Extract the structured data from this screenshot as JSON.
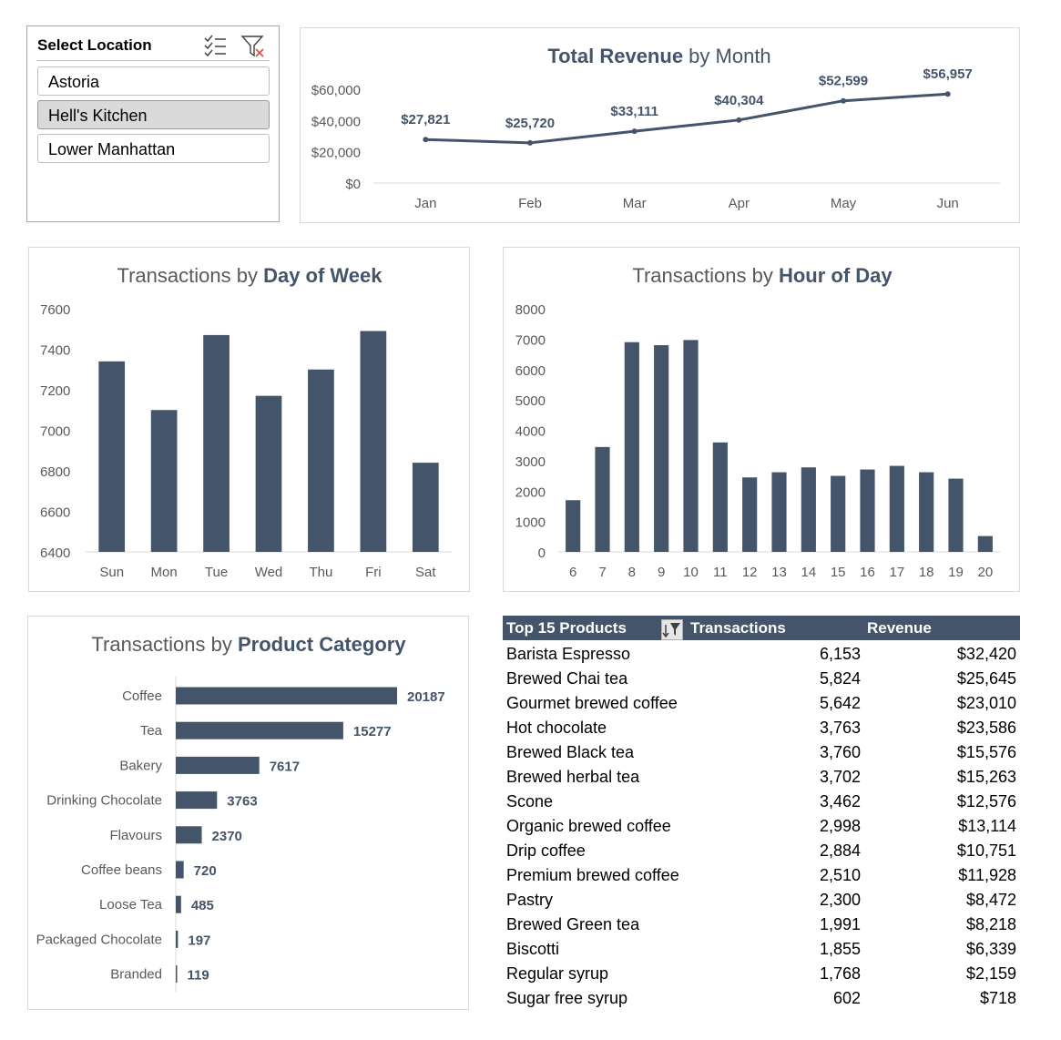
{
  "slicer": {
    "title": "Select Location",
    "items": [
      {
        "label": "Astoria",
        "selected": false
      },
      {
        "label": "Hell's Kitchen",
        "selected": true
      },
      {
        "label": "Lower Manhattan",
        "selected": false
      }
    ]
  },
  "charts": {
    "revenue": {
      "title_bold": "Total Revenue",
      "title_rest": " by Month"
    },
    "day": {
      "title_rest": "Transactions by ",
      "title_bold": "Day of Week"
    },
    "hour": {
      "title_rest": "Transactions by ",
      "title_bold": "Hour of Day"
    },
    "category": {
      "title_rest": "Transactions by ",
      "title_bold": "Product Category"
    }
  },
  "chart_data": [
    {
      "id": "revenue",
      "type": "line",
      "title": "Total Revenue by Month",
      "categories": [
        "Jan",
        "Feb",
        "Mar",
        "Apr",
        "May",
        "Jun"
      ],
      "values": [
        27821,
        25720,
        33111,
        40304,
        52599,
        56957
      ],
      "data_labels": [
        "$27,821",
        "$25,720",
        "$33,111",
        "$40,304",
        "$52,599",
        "$56,957"
      ],
      "yticks": [
        "$0",
        "$20,000",
        "$40,000",
        "$60,000"
      ],
      "ylim": [
        0,
        60000
      ],
      "color": "#44546a"
    },
    {
      "id": "day",
      "type": "bar",
      "title": "Transactions by Day of Week",
      "categories": [
        "Sun",
        "Mon",
        "Tue",
        "Wed",
        "Thu",
        "Fri",
        "Sat"
      ],
      "values": [
        7340,
        7100,
        7470,
        7170,
        7300,
        7490,
        6840
      ],
      "yticks": [
        "6400",
        "6600",
        "6800",
        "7000",
        "7200",
        "7400",
        "7600"
      ],
      "ylim": [
        6400,
        7600
      ],
      "color": "#44546a"
    },
    {
      "id": "hour",
      "type": "bar",
      "title": "Transactions by Hour of Day",
      "categories": [
        "6",
        "7",
        "8",
        "9",
        "10",
        "11",
        "12",
        "13",
        "14",
        "15",
        "16",
        "17",
        "18",
        "19",
        "20"
      ],
      "values": [
        1700,
        3450,
        6900,
        6800,
        6970,
        3600,
        2450,
        2620,
        2780,
        2500,
        2710,
        2830,
        2620,
        2410,
        520
      ],
      "yticks": [
        "0",
        "1000",
        "2000",
        "3000",
        "4000",
        "5000",
        "6000",
        "7000",
        "8000"
      ],
      "ylim": [
        0,
        8000
      ],
      "color": "#44546a"
    },
    {
      "id": "category",
      "type": "bar",
      "orientation": "horizontal",
      "title": "Transactions by Product Category",
      "categories": [
        "Coffee",
        "Tea",
        "Bakery",
        "Drinking Chocolate",
        "Flavours",
        "Coffee beans",
        "Loose Tea",
        "Packaged Chocolate",
        "Branded"
      ],
      "values": [
        20187,
        15277,
        7617,
        3763,
        2370,
        720,
        485,
        197,
        119
      ],
      "data_labels": [
        "20187",
        "15277",
        "7617",
        "3763",
        "2370",
        "720",
        "485",
        "197",
        "119"
      ],
      "xlim": [
        0,
        20187
      ],
      "color": "#44546a"
    }
  ],
  "products": {
    "headers": {
      "name": "Top 15 Products",
      "transactions": "Transactions",
      "revenue": "Revenue"
    },
    "rows": [
      {
        "name": "Barista Espresso",
        "transactions": "6,153",
        "revenue": "$32,420"
      },
      {
        "name": "Brewed Chai tea",
        "transactions": "5,824",
        "revenue": "$25,645"
      },
      {
        "name": "Gourmet brewed coffee",
        "transactions": "5,642",
        "revenue": "$23,010"
      },
      {
        "name": "Hot chocolate",
        "transactions": "3,763",
        "revenue": "$23,586"
      },
      {
        "name": "Brewed Black tea",
        "transactions": "3,760",
        "revenue": "$15,576"
      },
      {
        "name": "Brewed herbal tea",
        "transactions": "3,702",
        "revenue": "$15,263"
      },
      {
        "name": "Scone",
        "transactions": "3,462",
        "revenue": "$12,576"
      },
      {
        "name": "Organic brewed coffee",
        "transactions": "2,998",
        "revenue": "$13,114"
      },
      {
        "name": "Drip coffee",
        "transactions": "2,884",
        "revenue": "$10,751"
      },
      {
        "name": "Premium brewed coffee",
        "transactions": "2,510",
        "revenue": "$11,928"
      },
      {
        "name": "Pastry",
        "transactions": "2,300",
        "revenue": "$8,472"
      },
      {
        "name": "Brewed Green tea",
        "transactions": "1,991",
        "revenue": "$8,218"
      },
      {
        "name": "Biscotti",
        "transactions": "1,855",
        "revenue": "$6,339"
      },
      {
        "name": "Regular syrup",
        "transactions": "1,768",
        "revenue": "$2,159"
      },
      {
        "name": "Sugar free syrup",
        "transactions": "602",
        "revenue": "$718"
      }
    ]
  },
  "icons": {
    "multiselect": "multi-select-icon",
    "clear_filter": "clear-filter-icon",
    "sort_filter": "sort-filter-icon"
  }
}
